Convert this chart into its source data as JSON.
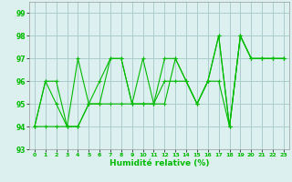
{
  "title": "",
  "xlabel": "Humidité relative (%)",
  "ylabel": "",
  "bg_color": "#ddf0f0",
  "grid_color": "#aacccc",
  "line_color": "#00bb00",
  "marker_color": "#00bb00",
  "xlim": [
    -0.5,
    23.5
  ],
  "ylim": [
    93,
    99.5
  ],
  "yticks": [
    93,
    94,
    95,
    96,
    97,
    98,
    99
  ],
  "xticks": [
    0,
    1,
    2,
    3,
    4,
    5,
    6,
    7,
    8,
    9,
    10,
    11,
    12,
    13,
    14,
    15,
    16,
    17,
    18,
    19,
    20,
    21,
    22,
    23
  ],
  "series": [
    [
      94,
      96,
      96,
      94,
      97,
      95,
      96,
      97,
      97,
      95,
      97,
      95,
      97,
      97,
      96,
      95,
      96,
      98,
      94,
      98,
      97,
      97,
      97,
      97
    ],
    [
      94,
      96,
      95,
      94,
      94,
      95,
      95,
      97,
      97,
      95,
      95,
      95,
      95,
      97,
      96,
      95,
      96,
      98,
      94,
      98,
      97,
      97,
      97,
      97
    ],
    [
      94,
      94,
      94,
      94,
      94,
      95,
      95,
      95,
      95,
      95,
      95,
      95,
      96,
      96,
      96,
      95,
      96,
      96,
      94,
      98,
      97,
      97,
      97,
      97
    ]
  ]
}
